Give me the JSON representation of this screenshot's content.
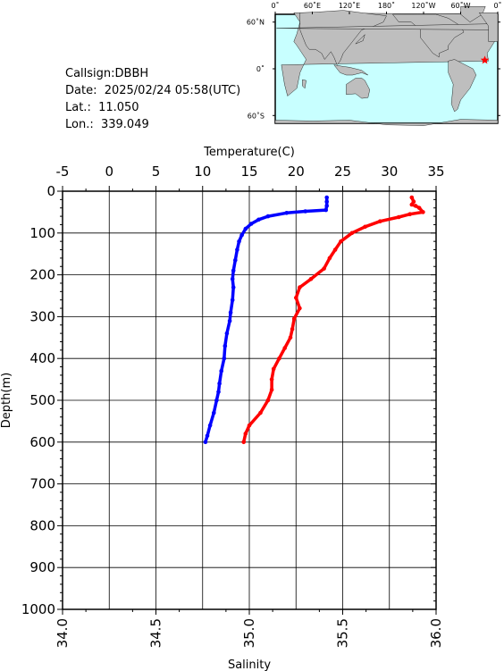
{
  "info": {
    "callsign": "Callsign:DBBH",
    "date": "Date:  2025/02/24 05:58(UTC)",
    "lat": "Lat.:  11.050",
    "lon": "Lon.:  339.049"
  },
  "map": {
    "top_labels": [
      "0˚",
      "60˚E",
      "120˚E",
      "180˚",
      "120˚W",
      "60˚W",
      "0˚"
    ],
    "left_labels": [
      "60˚N",
      "0˚",
      "60˚S"
    ],
    "ocean_color": "#c8ffff",
    "land_color": "#bebebe",
    "marker_color": "#ff0000",
    "marker": {
      "lon": 339.049,
      "lat": 11.05
    }
  },
  "chart_data": {
    "type": "line",
    "x_top_label": "Temperature(C)",
    "x_bottom_label": "Salinity",
    "y_label": "Depth(m)",
    "temperature_ticks": [
      "-5",
      "0",
      "5",
      "10",
      "15",
      "20",
      "25",
      "30",
      "35"
    ],
    "salinity_ticks": [
      "34.0",
      "34.5",
      "35.0",
      "35.5",
      "36.0"
    ],
    "depth_ticks": [
      "0",
      "100",
      "200",
      "300",
      "400",
      "500",
      "600",
      "700",
      "800",
      "900",
      "1000"
    ],
    "temperature_range": [
      -5,
      35
    ],
    "salinity_range": [
      34.0,
      36.0
    ],
    "depth_range": [
      0,
      1000
    ],
    "series": [
      {
        "axis": "temperature",
        "color": "#0000ff",
        "points": [
          [
            23.3,
            15
          ],
          [
            23.3,
            25
          ],
          [
            23.3,
            35
          ],
          [
            23.2,
            45
          ],
          [
            21.0,
            48
          ],
          [
            19.0,
            52
          ],
          [
            17.0,
            60
          ],
          [
            16.0,
            68
          ],
          [
            15.2,
            78
          ],
          [
            14.6,
            90
          ],
          [
            14.2,
            105
          ],
          [
            13.9,
            120
          ],
          [
            13.7,
            140
          ],
          [
            13.5,
            165
          ],
          [
            13.3,
            190
          ],
          [
            13.2,
            210
          ],
          [
            13.3,
            230
          ],
          [
            13.2,
            260
          ],
          [
            13.0,
            290
          ],
          [
            12.9,
            310
          ],
          [
            12.6,
            340
          ],
          [
            12.4,
            370
          ],
          [
            12.3,
            400
          ],
          [
            12.0,
            430
          ],
          [
            11.8,
            460
          ],
          [
            11.7,
            480
          ],
          [
            11.5,
            500
          ],
          [
            11.2,
            530
          ],
          [
            10.8,
            560
          ],
          [
            10.5,
            585
          ],
          [
            10.3,
            600
          ]
        ]
      },
      {
        "axis": "salinity",
        "color": "#ff0000",
        "points": [
          [
            35.87,
            15
          ],
          [
            35.88,
            25
          ],
          [
            35.87,
            32
          ],
          [
            35.89,
            35
          ],
          [
            35.91,
            40
          ],
          [
            35.93,
            50
          ],
          [
            35.86,
            55
          ],
          [
            35.8,
            62
          ],
          [
            35.7,
            72
          ],
          [
            35.62,
            85
          ],
          [
            35.55,
            100
          ],
          [
            35.49,
            120
          ],
          [
            35.46,
            140
          ],
          [
            35.43,
            160
          ],
          [
            35.4,
            185
          ],
          [
            35.33,
            210
          ],
          [
            35.27,
            230
          ],
          [
            35.25,
            255
          ],
          [
            35.27,
            280
          ],
          [
            35.24,
            305
          ],
          [
            35.23,
            330
          ],
          [
            35.22,
            350
          ],
          [
            35.19,
            375
          ],
          [
            35.16,
            400
          ],
          [
            35.13,
            425
          ],
          [
            35.12,
            450
          ],
          [
            35.12,
            475
          ],
          [
            35.1,
            500
          ],
          [
            35.06,
            530
          ],
          [
            35.0,
            560
          ],
          [
            34.98,
            580
          ],
          [
            34.97,
            600
          ]
        ]
      }
    ]
  }
}
